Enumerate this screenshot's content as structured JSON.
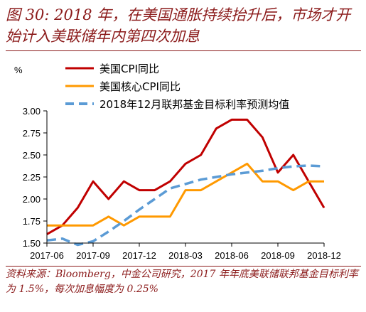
{
  "figure": {
    "title": "图 30: 2018 年，在美国通胀持续抬升后，市场才开始计入美联储年内第四次加息",
    "source": "资料来源：Bloomberg，中金公司研究，2017 年年底美联储联邦基金目标利率为 1.5%，每次加息幅度为 0.25%"
  },
  "colors": {
    "title": "#8b1a1a",
    "cpi": "#c00000",
    "core_cpi": "#ff9900",
    "fed": "#5b9bd5",
    "axis": "#000000"
  },
  "chart_data": {
    "type": "line",
    "unit_label": "%",
    "x_ticks": [
      "2017-06",
      "2017-09",
      "2017-12",
      "2018-03",
      "2018-06",
      "2018-09",
      "2018-12"
    ],
    "y_ticks": [
      "3.00",
      "2.75",
      "2.50",
      "2.25",
      "2.00",
      "1.75",
      "1.50"
    ],
    "ylim": [
      1.5,
      3.0
    ],
    "xlim": [
      "2017-06",
      "2018-12"
    ],
    "grid": false,
    "legend_position": "top-left",
    "series": [
      {
        "name": "美国CPI同比",
        "color": "#c00000",
        "style": "solid",
        "points": [
          [
            "2017-06",
            1.6
          ],
          [
            "2017-07",
            1.7
          ],
          [
            "2017-08",
            1.9
          ],
          [
            "2017-09",
            2.2
          ],
          [
            "2017-10",
            2.0
          ],
          [
            "2017-11",
            2.2
          ],
          [
            "2017-12",
            2.1
          ],
          [
            "2018-01",
            2.1
          ],
          [
            "2018-02",
            2.2
          ],
          [
            "2018-03",
            2.4
          ],
          [
            "2018-04",
            2.5
          ],
          [
            "2018-05",
            2.8
          ],
          [
            "2018-06",
            2.9
          ],
          [
            "2018-07",
            2.9
          ],
          [
            "2018-08",
            2.7
          ],
          [
            "2018-09",
            2.3
          ],
          [
            "2018-10",
            2.5
          ],
          [
            "2018-11",
            2.2
          ],
          [
            "2018-12",
            1.9
          ]
        ]
      },
      {
        "name": "美国核心CPI同比",
        "color": "#ff9900",
        "style": "solid",
        "points": [
          [
            "2017-06",
            1.7
          ],
          [
            "2017-07",
            1.7
          ],
          [
            "2017-08",
            1.7
          ],
          [
            "2017-09",
            1.7
          ],
          [
            "2017-10",
            1.8
          ],
          [
            "2017-11",
            1.7
          ],
          [
            "2017-12",
            1.8
          ],
          [
            "2018-01",
            1.8
          ],
          [
            "2018-02",
            1.8
          ],
          [
            "2018-03",
            2.1
          ],
          [
            "2018-04",
            2.1
          ],
          [
            "2018-05",
            2.2
          ],
          [
            "2018-06",
            2.3
          ],
          [
            "2018-07",
            2.4
          ],
          [
            "2018-08",
            2.2
          ],
          [
            "2018-09",
            2.2
          ],
          [
            "2018-10",
            2.1
          ],
          [
            "2018-11",
            2.2
          ],
          [
            "2018-12",
            2.2
          ]
        ]
      },
      {
        "name": "2018年12月联邦基金目标利率预测均值",
        "color": "#5b9bd5",
        "style": "dashed",
        "points": [
          [
            "2017-06",
            1.53
          ],
          [
            "2017-07",
            1.55
          ],
          [
            "2017-08",
            1.48
          ],
          [
            "2017-09",
            1.52
          ],
          [
            "2017-10",
            1.63
          ],
          [
            "2017-11",
            1.75
          ],
          [
            "2017-12",
            1.88
          ],
          [
            "2018-01",
            2.0
          ],
          [
            "2018-02",
            2.12
          ],
          [
            "2018-03",
            2.17
          ],
          [
            "2018-04",
            2.22
          ],
          [
            "2018-05",
            2.25
          ],
          [
            "2018-06",
            2.28
          ],
          [
            "2018-07",
            2.3
          ],
          [
            "2018-08",
            2.32
          ],
          [
            "2018-09",
            2.35
          ],
          [
            "2018-10",
            2.37
          ],
          [
            "2018-11",
            2.38
          ],
          [
            "2018-12",
            2.37
          ]
        ]
      }
    ]
  }
}
